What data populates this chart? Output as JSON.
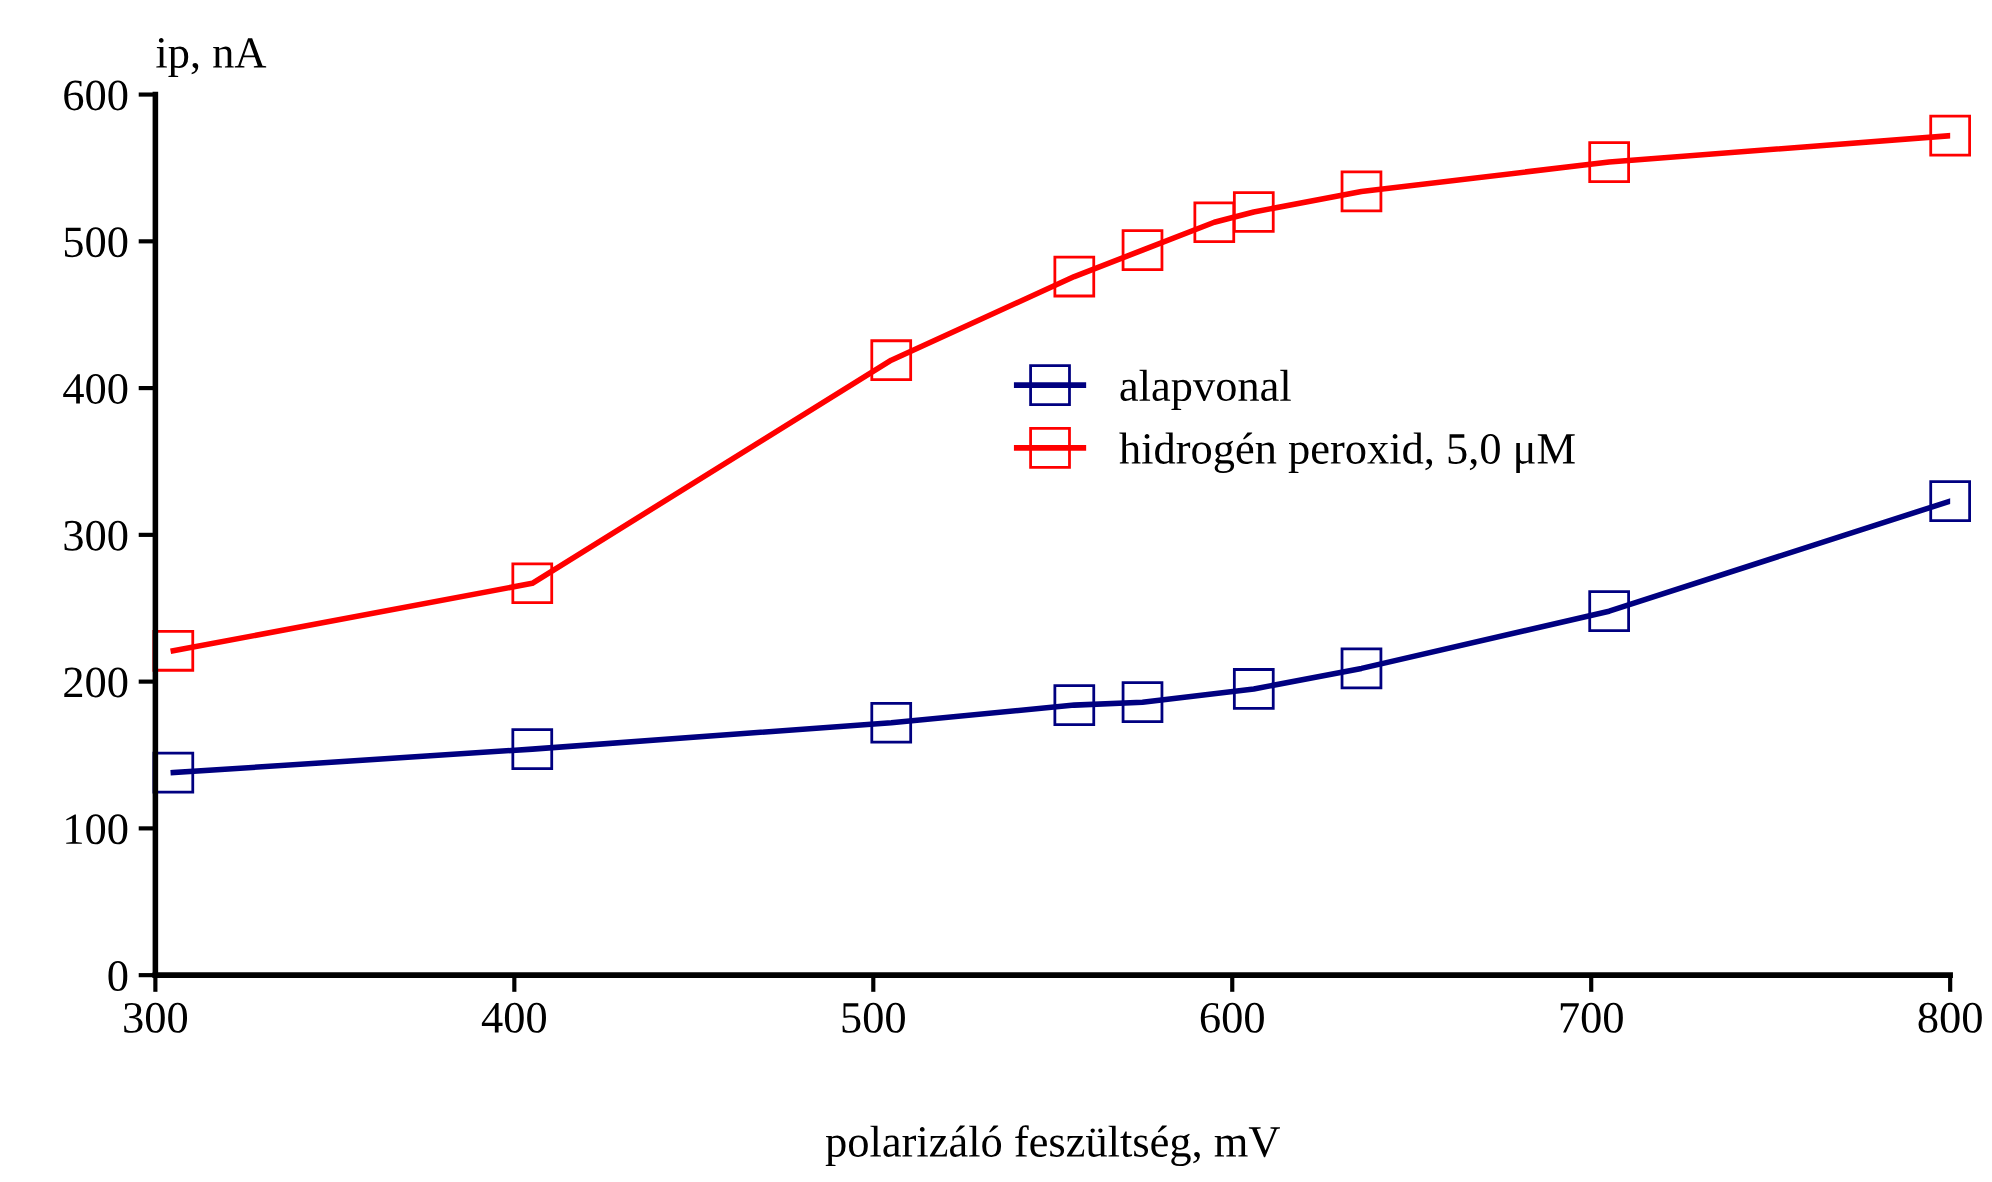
{
  "chart_data": {
    "type": "line",
    "xlabel": "polarizáló feszültség, mV",
    "ylabel": "ip, nA",
    "xlim": [
      300,
      800
    ],
    "xticks": [
      300,
      400,
      500,
      600,
      700,
      800
    ],
    "ylim": [
      0,
      600
    ],
    "yticks": [
      0,
      100,
      200,
      300,
      400,
      500,
      600
    ],
    "grid": false,
    "legend": "center",
    "marker": "square",
    "line_style": "solid",
    "series": [
      {
        "name": "alapvonal",
        "color": "#000080",
        "x": [
          305,
          405,
          505,
          556,
          575,
          606,
          636,
          705,
          800
        ],
        "values": [
          138,
          154,
          172,
          184,
          186,
          195,
          209,
          248,
          323
        ]
      },
      {
        "name": "hidrogén peroxid, 5,0 μM",
        "color": "#ff0000",
        "x": [
          305,
          405,
          505,
          556,
          575,
          595,
          606,
          636,
          705,
          800
        ],
        "values": [
          221,
          267,
          419,
          476,
          494,
          513,
          520,
          534,
          554,
          572
        ]
      }
    ]
  }
}
